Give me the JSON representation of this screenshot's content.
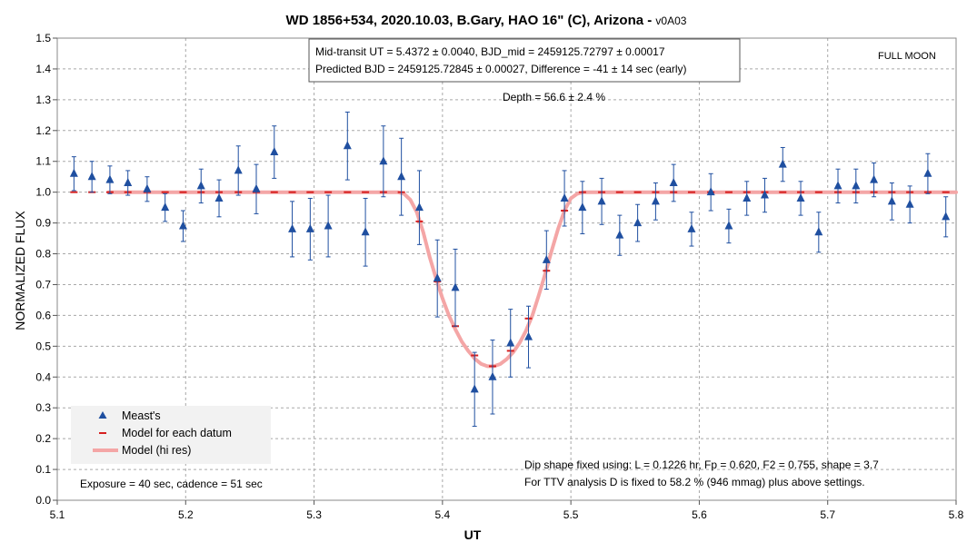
{
  "chart_data": {
    "type": "scatter",
    "title": "WD 1856+534, 2020.10.03, B.Gary, HAO 16\" (C), Arizona - ",
    "title_suffix": "v0A03",
    "xlabel": "UT",
    "ylabel": "NORMALIZED FLUX",
    "xlim": [
      5.1,
      5.8
    ],
    "ylim": [
      0.0,
      1.5
    ],
    "xticks": [
      "5.1",
      "5.2",
      "5.3",
      "5.4",
      "5.5",
      "5.6",
      "5.7",
      "5.8"
    ],
    "yticks": [
      "0.0",
      "0.1",
      "0.2",
      "0.3",
      "0.4",
      "0.5",
      "0.6",
      "0.7",
      "0.8",
      "0.9",
      "1.0",
      "1.1",
      "1.2",
      "1.3",
      "1.4",
      "1.5"
    ],
    "grid": true,
    "legend_position": "bottom-left",
    "annotations": {
      "box_line1": "Mid-transit UT = 5.4372 ± 0.0040, BJD_mid = 2459125.72797 ± 0.00017",
      "box_line2": "Predicted BJD = 2459125.72845 ± 0.00027, Difference = -41 ± 14 sec (early)",
      "depth": "Depth = 56.6 ± 2.4 %",
      "full_moon": "FULL MOON",
      "exposure": "Exposure = 40 sec, cadence = 51 sec",
      "dip_shape": "Dip shape fixed using:  L = 0.1226 hr, Fp = 0.620, F2 = 0.755, shape = 3.7",
      "ttv": "For TTV analysis D is fixed  to 58.2 % (946 mmag) plus above settings."
    },
    "series": [
      {
        "name": "Meast's",
        "color": "#1f4fa0",
        "marker": "triangle",
        "x": [
          5.113,
          5.127,
          5.141,
          5.155,
          5.17,
          5.184,
          5.198,
          5.212,
          5.226,
          5.241,
          5.255,
          5.269,
          5.283,
          5.297,
          5.311,
          5.326,
          5.34,
          5.354,
          5.368,
          5.382,
          5.396,
          5.41,
          5.425,
          5.439,
          5.453,
          5.467,
          5.481,
          5.495,
          5.509,
          5.524,
          5.538,
          5.552,
          5.566,
          5.58,
          5.594,
          5.609,
          5.623,
          5.637,
          5.651,
          5.665,
          5.679,
          5.693,
          5.708,
          5.722,
          5.736,
          5.75,
          5.764,
          5.778,
          5.792
        ],
        "y": [
          1.06,
          1.05,
          1.04,
          1.03,
          1.01,
          0.95,
          0.89,
          1.02,
          0.98,
          1.07,
          1.01,
          1.13,
          0.88,
          0.88,
          0.89,
          1.15,
          0.87,
          1.1,
          1.05,
          0.95,
          0.72,
          0.69,
          0.36,
          0.4,
          0.51,
          0.53,
          0.78,
          0.98,
          0.95,
          0.97,
          0.86,
          0.9,
          0.97,
          1.03,
          0.88,
          1.0,
          0.89,
          0.98,
          0.99,
          1.09,
          0.98,
          0.87,
          1.02,
          1.02,
          1.04,
          0.97,
          0.96,
          1.06,
          0.92
        ],
        "err": [
          0.055,
          0.05,
          0.045,
          0.04,
          0.04,
          0.045,
          0.05,
          0.055,
          0.06,
          0.08,
          0.08,
          0.085,
          0.09,
          0.1,
          0.1,
          0.11,
          0.11,
          0.115,
          0.125,
          0.12,
          0.125,
          0.125,
          0.12,
          0.12,
          0.11,
          0.1,
          0.095,
          0.09,
          0.085,
          0.075,
          0.065,
          0.06,
          0.06,
          0.06,
          0.055,
          0.06,
          0.055,
          0.055,
          0.055,
          0.055,
          0.055,
          0.065,
          0.055,
          0.055,
          0.055,
          0.06,
          0.06,
          0.065,
          0.065
        ]
      },
      {
        "name": "Model for each datum",
        "color": "#d62020",
        "marker": "dash",
        "x": [
          5.113,
          5.127,
          5.141,
          5.155,
          5.17,
          5.184,
          5.198,
          5.212,
          5.226,
          5.241,
          5.255,
          5.269,
          5.283,
          5.297,
          5.311,
          5.326,
          5.34,
          5.354,
          5.368,
          5.382,
          5.396,
          5.41,
          5.425,
          5.439,
          5.453,
          5.467,
          5.481,
          5.495,
          5.509,
          5.524,
          5.538,
          5.552,
          5.566,
          5.58,
          5.594,
          5.609,
          5.623,
          5.637,
          5.651,
          5.665,
          5.679,
          5.693,
          5.708,
          5.722,
          5.736,
          5.75,
          5.764,
          5.778,
          5.792
        ],
        "y": [
          1.0,
          1.0,
          1.0,
          1.0,
          1.0,
          1.0,
          1.0,
          1.0,
          1.0,
          1.0,
          1.0,
          1.0,
          1.0,
          1.0,
          1.0,
          1.0,
          1.0,
          1.0,
          1.0,
          0.905,
          0.71,
          0.565,
          0.47,
          0.435,
          0.485,
          0.59,
          0.745,
          0.94,
          1.0,
          1.0,
          1.0,
          1.0,
          1.0,
          1.0,
          1.0,
          1.0,
          1.0,
          1.0,
          1.0,
          1.0,
          1.0,
          1.0,
          1.0,
          1.0,
          1.0,
          1.0,
          1.0,
          1.0,
          1.0
        ]
      },
      {
        "name": "Model (hi res)",
        "color": "#f4a6a6",
        "marker": "line",
        "x": [
          5.14,
          5.365,
          5.37,
          5.375,
          5.38,
          5.385,
          5.39,
          5.395,
          5.4,
          5.405,
          5.41,
          5.415,
          5.42,
          5.425,
          5.43,
          5.435,
          5.44,
          5.445,
          5.45,
          5.455,
          5.46,
          5.465,
          5.47,
          5.475,
          5.48,
          5.485,
          5.49,
          5.495,
          5.5,
          5.505,
          5.51,
          5.8
        ],
        "y": [
          1.0,
          1.0,
          0.995,
          0.975,
          0.935,
          0.87,
          0.79,
          0.72,
          0.655,
          0.6,
          0.555,
          0.515,
          0.485,
          0.46,
          0.443,
          0.435,
          0.435,
          0.442,
          0.458,
          0.48,
          0.51,
          0.55,
          0.6,
          0.665,
          0.735,
          0.81,
          0.88,
          0.94,
          0.98,
          0.995,
          1.0,
          1.0
        ]
      }
    ]
  }
}
